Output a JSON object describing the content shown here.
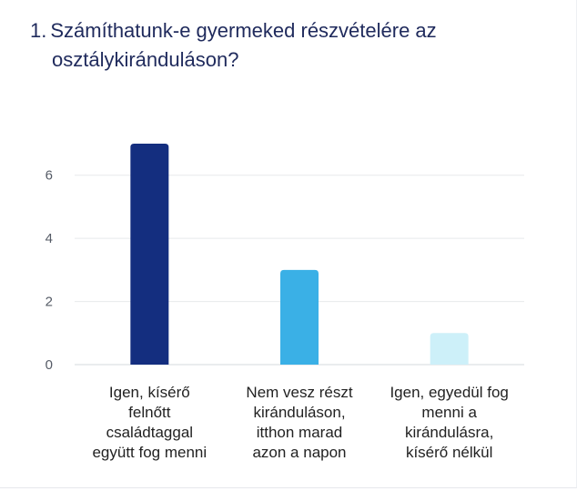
{
  "question": {
    "number": "1.",
    "line1": "Számíthatunk-e gyermeked részvételére az",
    "line2": "osztálykiránduláson?"
  },
  "chart_data": {
    "type": "bar",
    "title": "",
    "xlabel": "",
    "ylabel": "",
    "ylim": [
      0,
      7
    ],
    "yticks": [
      0,
      2,
      4,
      6
    ],
    "grid": true,
    "legend": "none",
    "categories": [
      "Igen, kísérő felnőtt családtaggal együtt fog menni",
      "Nem vesz részt kiránduláson, itthon marad azon a napon",
      "Igen, egyedül fog menni a kirándulásra, kísérő nélkül"
    ],
    "category_lines": [
      [
        "Igen, kísérő",
        "felnőtt",
        "családtaggal",
        "együtt fog menni"
      ],
      [
        "Nem vesz részt",
        "kiránduláson,",
        "itthon marad",
        "azon a napon"
      ],
      [
        "Igen, egyedül fog",
        "menni a",
        "kirándulásra,",
        "kísérő nélkül"
      ]
    ],
    "values": [
      7,
      3,
      1
    ],
    "colors": [
      "#142e7f",
      "#3ab0e6",
      "#cdf0f9"
    ]
  }
}
